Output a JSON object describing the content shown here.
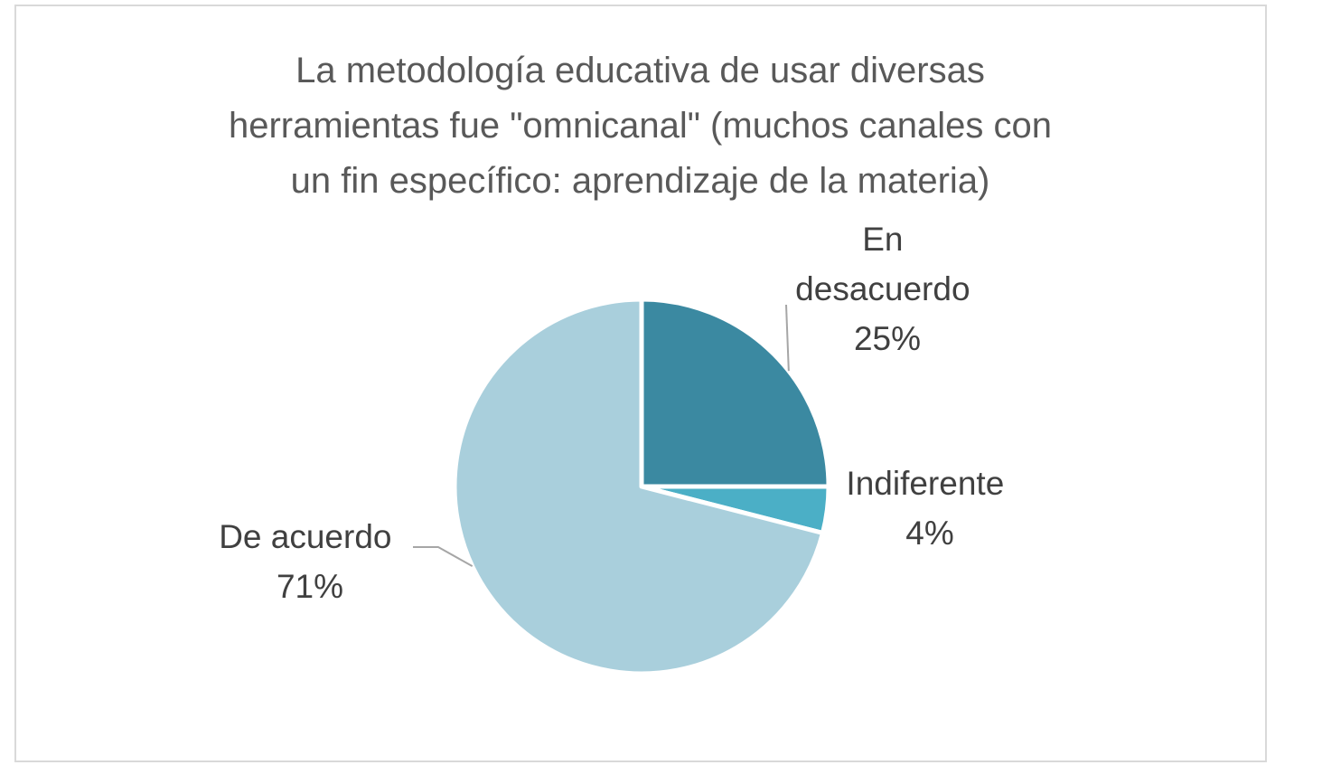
{
  "chart_data": {
    "type": "pie",
    "title_lines": [
      "La metodología educativa de usar diversas",
      "herramientas fue \"omnicanal\" (muchos canales con",
      "un fin específico: aprendizaje de la materia)"
    ],
    "categories": [
      "En desacuerdo",
      "Indiferente",
      "De acuerdo"
    ],
    "values": [
      25,
      4,
      71
    ],
    "percent_labels": [
      "25%",
      "4%",
      "71%"
    ],
    "colors": [
      "#3b89a1",
      "#4bafc6",
      "#a9cfdc"
    ],
    "label_lines": [
      [
        "En",
        "desacuerdo",
        "25%"
      ],
      [
        "Indiferente",
        "4%"
      ],
      [
        "De acuerdo",
        "71%"
      ]
    ],
    "leader_line_color": "#a6a6a6",
    "slice_border_color": "#ffffff"
  }
}
